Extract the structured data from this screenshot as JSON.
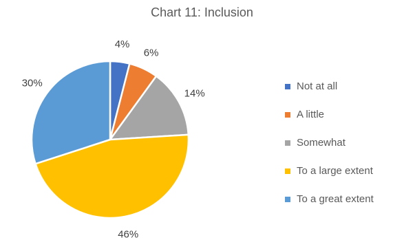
{
  "chart_data": {
    "type": "pie",
    "title": "Chart 11: Inclusion",
    "categories": [
      "Not at all",
      "A little",
      "Somewhat",
      "To a large extent",
      "To a great extent"
    ],
    "values": [
      4,
      6,
      14,
      46,
      30
    ],
    "data_labels": [
      "4%",
      "6%",
      "14%",
      "46%",
      "30%"
    ],
    "colors": [
      "#4472C4",
      "#ED7D31",
      "#A5A5A5",
      "#FFC000",
      "#5B9BD5"
    ],
    "legend_position": "right"
  }
}
